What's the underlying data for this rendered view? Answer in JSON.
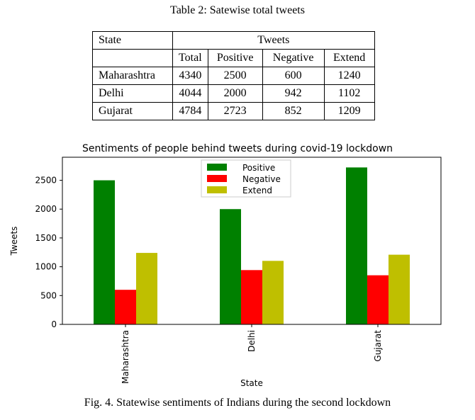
{
  "table_caption": "Table 2: Satewise total tweets",
  "table": {
    "header_state": "State",
    "header_tweets": "Tweets",
    "subheaders": [
      "Total",
      "Positive",
      "Negative",
      "Extend"
    ],
    "rows": [
      {
        "state": "Maharashtra",
        "values": [
          "4340",
          "2500",
          "600",
          "1240"
        ]
      },
      {
        "state": "Delhi",
        "values": [
          "4044",
          "2000",
          "942",
          "1102"
        ]
      },
      {
        "state": "Gujarat",
        "values": [
          "4784",
          "2723",
          "852",
          "1209"
        ]
      }
    ]
  },
  "chart_data": {
    "type": "bar",
    "title": "Sentiments of people behind tweets during covid-19 lockdown",
    "xlabel": "State",
    "ylabel": "Tweets",
    "categories": [
      "Maharashtra",
      "Delhi",
      "Gujarat"
    ],
    "series": [
      {
        "name": "Positive",
        "values": [
          2500,
          2000,
          2723
        ],
        "color": "#008000"
      },
      {
        "name": "Negative",
        "values": [
          600,
          942,
          852
        ],
        "color": "#ff0000"
      },
      {
        "name": "Extend",
        "values": [
          1240,
          1102,
          1209
        ],
        "color": "#bfbf00"
      }
    ],
    "yticks": [
      "0",
      "500",
      "1000",
      "1500",
      "2000",
      "2500"
    ],
    "ylim": [
      0,
      2900
    ],
    "legend": "top-center",
    "grid": false
  },
  "figure_caption": "Fig. 4. Statewise sentiments of Indians during the second lockdown"
}
